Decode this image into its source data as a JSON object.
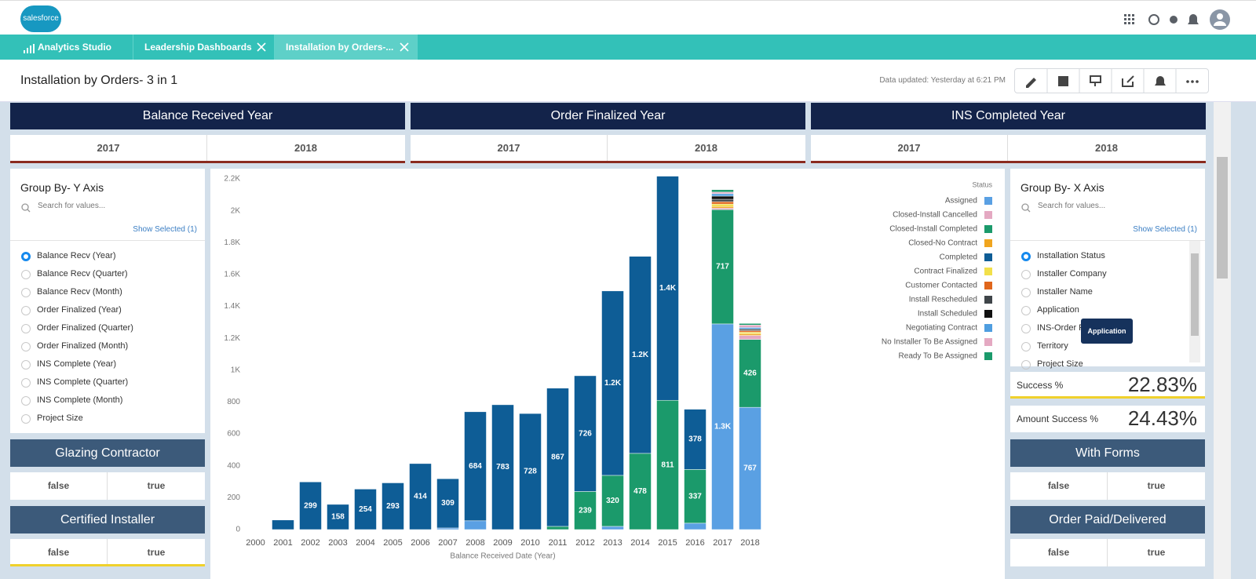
{
  "app": {
    "logo": "salesforce"
  },
  "tabs": [
    "Analytics Studio",
    "Leadership Dashboards",
    "Installation by Orders-..."
  ],
  "header": {
    "title": "Installation by Orders- 3 in 1",
    "updated": "Data updated: Yesterday at 6:21 PM"
  },
  "filters": [
    {
      "title": "Balance Received Year",
      "options": [
        "2017",
        "2018"
      ]
    },
    {
      "title": "Order Finalized Year",
      "options": [
        "2017",
        "2018"
      ]
    },
    {
      "title": "INS Completed Year",
      "options": [
        "2017",
        "2018"
      ]
    }
  ],
  "y_axis_panel": {
    "title": "Group By- Y Axis",
    "search": "Search for values...",
    "show_selected": "Show Selected (1)",
    "options": [
      "Balance Recv (Year)",
      "Balance Recv (Quarter)",
      "Balance Recv (Month)",
      "Order Finalized (Year)",
      "Order Finalized (Quarter)",
      "Order Finalized (Month)",
      "INS Complete (Year)",
      "INS Complete (Quarter)",
      "INS Complete (Month)",
      "Project Size"
    ]
  },
  "x_axis_panel": {
    "title": "Group By- X Axis",
    "search": "Search for values...",
    "show_selected": "Show Selected (1)",
    "options": [
      "Installation Status",
      "Installer Company",
      "Installer Name",
      "Application",
      "INS-Order Finalized",
      "Territory",
      "Project Size"
    ],
    "tooltip": "Application"
  },
  "toggles_left": [
    {
      "title": "Glazing Contractor",
      "options": [
        "false",
        "true"
      ]
    },
    {
      "title": "Certified Installer",
      "options": [
        "false",
        "true"
      ]
    }
  ],
  "metrics": [
    {
      "label": "Success %",
      "value": "22.83%"
    },
    {
      "label": "Amount Success %",
      "value": "24.43%"
    }
  ],
  "toggles_right": [
    {
      "title": "With Forms",
      "options": [
        "false",
        "true"
      ]
    },
    {
      "title": "Order Paid/Delivered",
      "options": [
        "false",
        "true"
      ]
    }
  ],
  "chart_data": {
    "type": "bar",
    "stacked": true,
    "x_label": "Balance Received Date (Year)",
    "legend_title": "Status",
    "grid": false,
    "categories": [
      "2000",
      "2001",
      "2002",
      "2003",
      "2004",
      "2005",
      "2006",
      "2007",
      "2008",
      "2009",
      "2010",
      "2011",
      "2012",
      "2013",
      "2014",
      "2015",
      "2016",
      "2017",
      "2018"
    ],
    "ylim": [
      0,
      2200
    ],
    "yticks": [
      0,
      200,
      400,
      600,
      800,
      {
        "value": 1000,
        "label": "1K"
      },
      {
        "value": 1200,
        "label": "1.2K"
      },
      {
        "value": 1400,
        "label": "1.4K"
      },
      {
        "value": 1600,
        "label": "1.6K"
      },
      {
        "value": 1800,
        "label": "1.8K"
      },
      {
        "value": 2000,
        "label": "2K"
      },
      {
        "value": 2200,
        "label": "2.2K"
      }
    ],
    "series": [
      {
        "name": "Assigned",
        "color": "#5aa0e3",
        "values": [
          0,
          0,
          0,
          0,
          0,
          0,
          0,
          10,
          55,
          0,
          0,
          0,
          0,
          20,
          0,
          0,
          40,
          1290,
          767
        ],
        "value_labels": [
          null,
          null,
          null,
          null,
          null,
          null,
          null,
          null,
          null,
          null,
          null,
          null,
          null,
          null,
          null,
          null,
          null,
          "1.3K",
          "767"
        ]
      },
      {
        "name": "Closed-Install Cancelled",
        "color": "#e4a9c2",
        "values": [
          0,
          0,
          0,
          0,
          0,
          0,
          0,
          0,
          0,
          0,
          0,
          0,
          0,
          0,
          0,
          0,
          0,
          10,
          25
        ]
      },
      {
        "name": "Closed-Install Completed",
        "color": "#1b9a6b",
        "values": [
          0,
          0,
          0,
          0,
          0,
          0,
          0,
          0,
          0,
          0,
          0,
          20,
          239,
          320,
          478,
          811,
          337,
          717,
          426
        ],
        "value_labels": [
          null,
          null,
          null,
          null,
          null,
          null,
          null,
          null,
          null,
          null,
          null,
          null,
          "239",
          "320",
          "478",
          "811",
          "337",
          "717",
          "426"
        ]
      },
      {
        "name": "Closed-No Contract",
        "color": "#f0a51f",
        "values": [
          0,
          0,
          0,
          0,
          0,
          0,
          0,
          0,
          0,
          0,
          0,
          0,
          0,
          0,
          0,
          0,
          0,
          10,
          10
        ]
      },
      {
        "name": "Completed",
        "color": "#0e5d96",
        "values": [
          0,
          60,
          299,
          158,
          254,
          293,
          414,
          309,
          684,
          783,
          728,
          867,
          726,
          1157,
          1236,
          1406,
          378,
          0,
          0
        ],
        "value_labels": [
          null,
          null,
          "299",
          "158",
          "254",
          "293",
          "414",
          "309",
          "684",
          "783",
          "728",
          "867",
          "726",
          "1.2K",
          "1.2K",
          "1.4K",
          "378",
          null,
          null
        ]
      },
      {
        "name": "Contract Finalized",
        "color": "#f2e04a",
        "values": [
          0,
          0,
          0,
          0,
          0,
          0,
          0,
          0,
          0,
          0,
          0,
          0,
          0,
          0,
          0,
          0,
          0,
          15,
          10
        ]
      },
      {
        "name": "Customer Contacted",
        "color": "#e0661c",
        "values": [
          0,
          0,
          0,
          0,
          0,
          0,
          0,
          0,
          0,
          0,
          0,
          0,
          0,
          0,
          0,
          0,
          0,
          15,
          10
        ]
      },
      {
        "name": "Install Rescheduled",
        "color": "#3f4549",
        "values": [
          0,
          0,
          0,
          0,
          0,
          0,
          0,
          0,
          0,
          0,
          0,
          0,
          0,
          0,
          0,
          0,
          0,
          15,
          10
        ]
      },
      {
        "name": "Install Scheduled",
        "color": "#111111",
        "values": [
          0,
          0,
          0,
          0,
          0,
          0,
          0,
          0,
          0,
          0,
          0,
          0,
          0,
          0,
          0,
          0,
          0,
          20,
          0
        ]
      },
      {
        "name": "Negotiating Contract",
        "color": "#4f9ee0",
        "values": [
          0,
          0,
          0,
          0,
          0,
          0,
          0,
          0,
          0,
          0,
          0,
          0,
          0,
          0,
          0,
          0,
          0,
          15,
          10
        ]
      },
      {
        "name": "No Installer To Be Assigned",
        "color": "#e4a9c2",
        "values": [
          0,
          0,
          0,
          0,
          0,
          0,
          0,
          0,
          0,
          0,
          0,
          0,
          0,
          0,
          0,
          0,
          0,
          10,
          15
        ]
      },
      {
        "name": "Ready To Be Assigned",
        "color": "#1b9a6b",
        "values": [
          0,
          0,
          0,
          0,
          0,
          0,
          0,
          0,
          0,
          0,
          0,
          0,
          0,
          0,
          0,
          0,
          0,
          15,
          10
        ]
      }
    ]
  }
}
